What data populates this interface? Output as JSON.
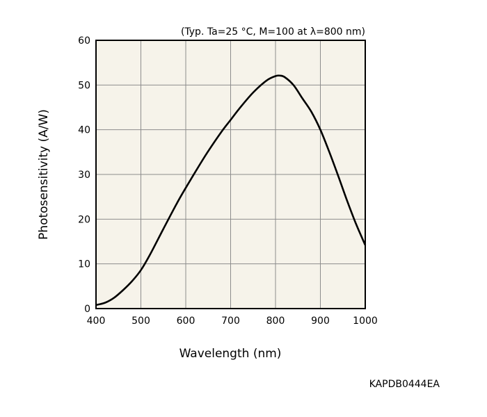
{
  "chart_data": {
    "type": "line",
    "conditions": "(Typ. Ta=25 °C, M=100 at λ=800 nm)",
    "xlabel": "Wavelength (nm)",
    "ylabel": "Photosensitivity (A/W)",
    "xlim": [
      400,
      1000
    ],
    "ylim": [
      0,
      60
    ],
    "x_ticks": [
      "400",
      "500",
      "600",
      "700",
      "800",
      "900",
      "1000"
    ],
    "y_ticks": [
      "0",
      "10",
      "20",
      "30",
      "40",
      "50",
      "60"
    ],
    "grid": true,
    "background_color": "#f6f3ea",
    "line_color": "#000000",
    "series": [
      {
        "x": [
          400,
          420,
          440,
          460,
          480,
          500,
          520,
          550,
          580,
          600,
          630,
          650,
          680,
          700,
          720,
          750,
          780,
          800,
          810,
          820,
          840,
          860,
          880,
          900,
          920,
          940,
          960,
          980,
          1000
        ],
        "values": [
          0.8,
          1.3,
          2.4,
          4.1,
          6.1,
          8.6,
          12.0,
          17.8,
          23.5,
          27.0,
          32.0,
          35.2,
          39.6,
          42.2,
          44.8,
          48.3,
          51.0,
          52.0,
          52.1,
          51.8,
          50.0,
          47.0,
          44.0,
          40.0,
          35.0,
          29.6,
          24.0,
          18.8,
          14.2
        ]
      }
    ]
  },
  "figure_code": "KAPDB0444EA"
}
